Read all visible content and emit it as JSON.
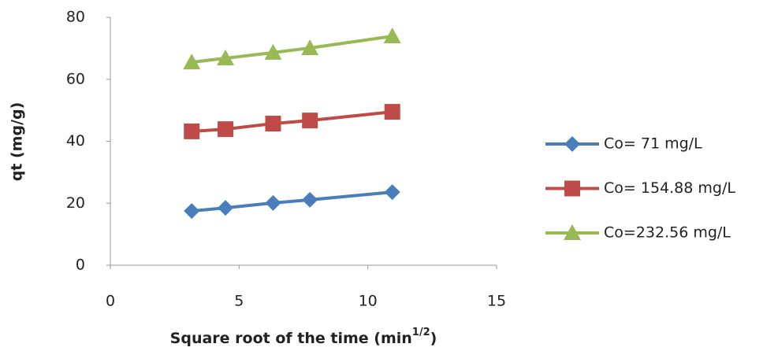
{
  "chart_data": {
    "type": "line",
    "xlabel": {
      "text": "Square root of the time (min",
      "sup": "1/2",
      "end": ")"
    },
    "ylabel": "qt (mg/g)",
    "x": [
      3.16,
      4.47,
      6.32,
      7.75,
      10.95
    ],
    "series": [
      {
        "name": "Co= 71 mg/L",
        "color": "#4a7ebb",
        "marker": "diamond",
        "values": [
          17.5,
          18.5,
          20.1,
          21.1,
          23.6
        ]
      },
      {
        "name": "Co= 154.88 mg/L",
        "color": "#be4b48",
        "marker": "square",
        "values": [
          43.2,
          43.9,
          45.7,
          46.7,
          49.5
        ]
      },
      {
        "name": "Co=232.56 mg/L",
        "color": "#98b954",
        "marker": "triangle",
        "values": [
          65.5,
          66.8,
          68.6,
          70.1,
          73.9
        ]
      }
    ],
    "xlim": [
      0,
      15
    ],
    "xticks": [
      0,
      5,
      10,
      15
    ],
    "ylim": [
      0,
      80
    ],
    "yticks": [
      0,
      20,
      40,
      60,
      80
    ],
    "grid": false,
    "legend": "right"
  }
}
